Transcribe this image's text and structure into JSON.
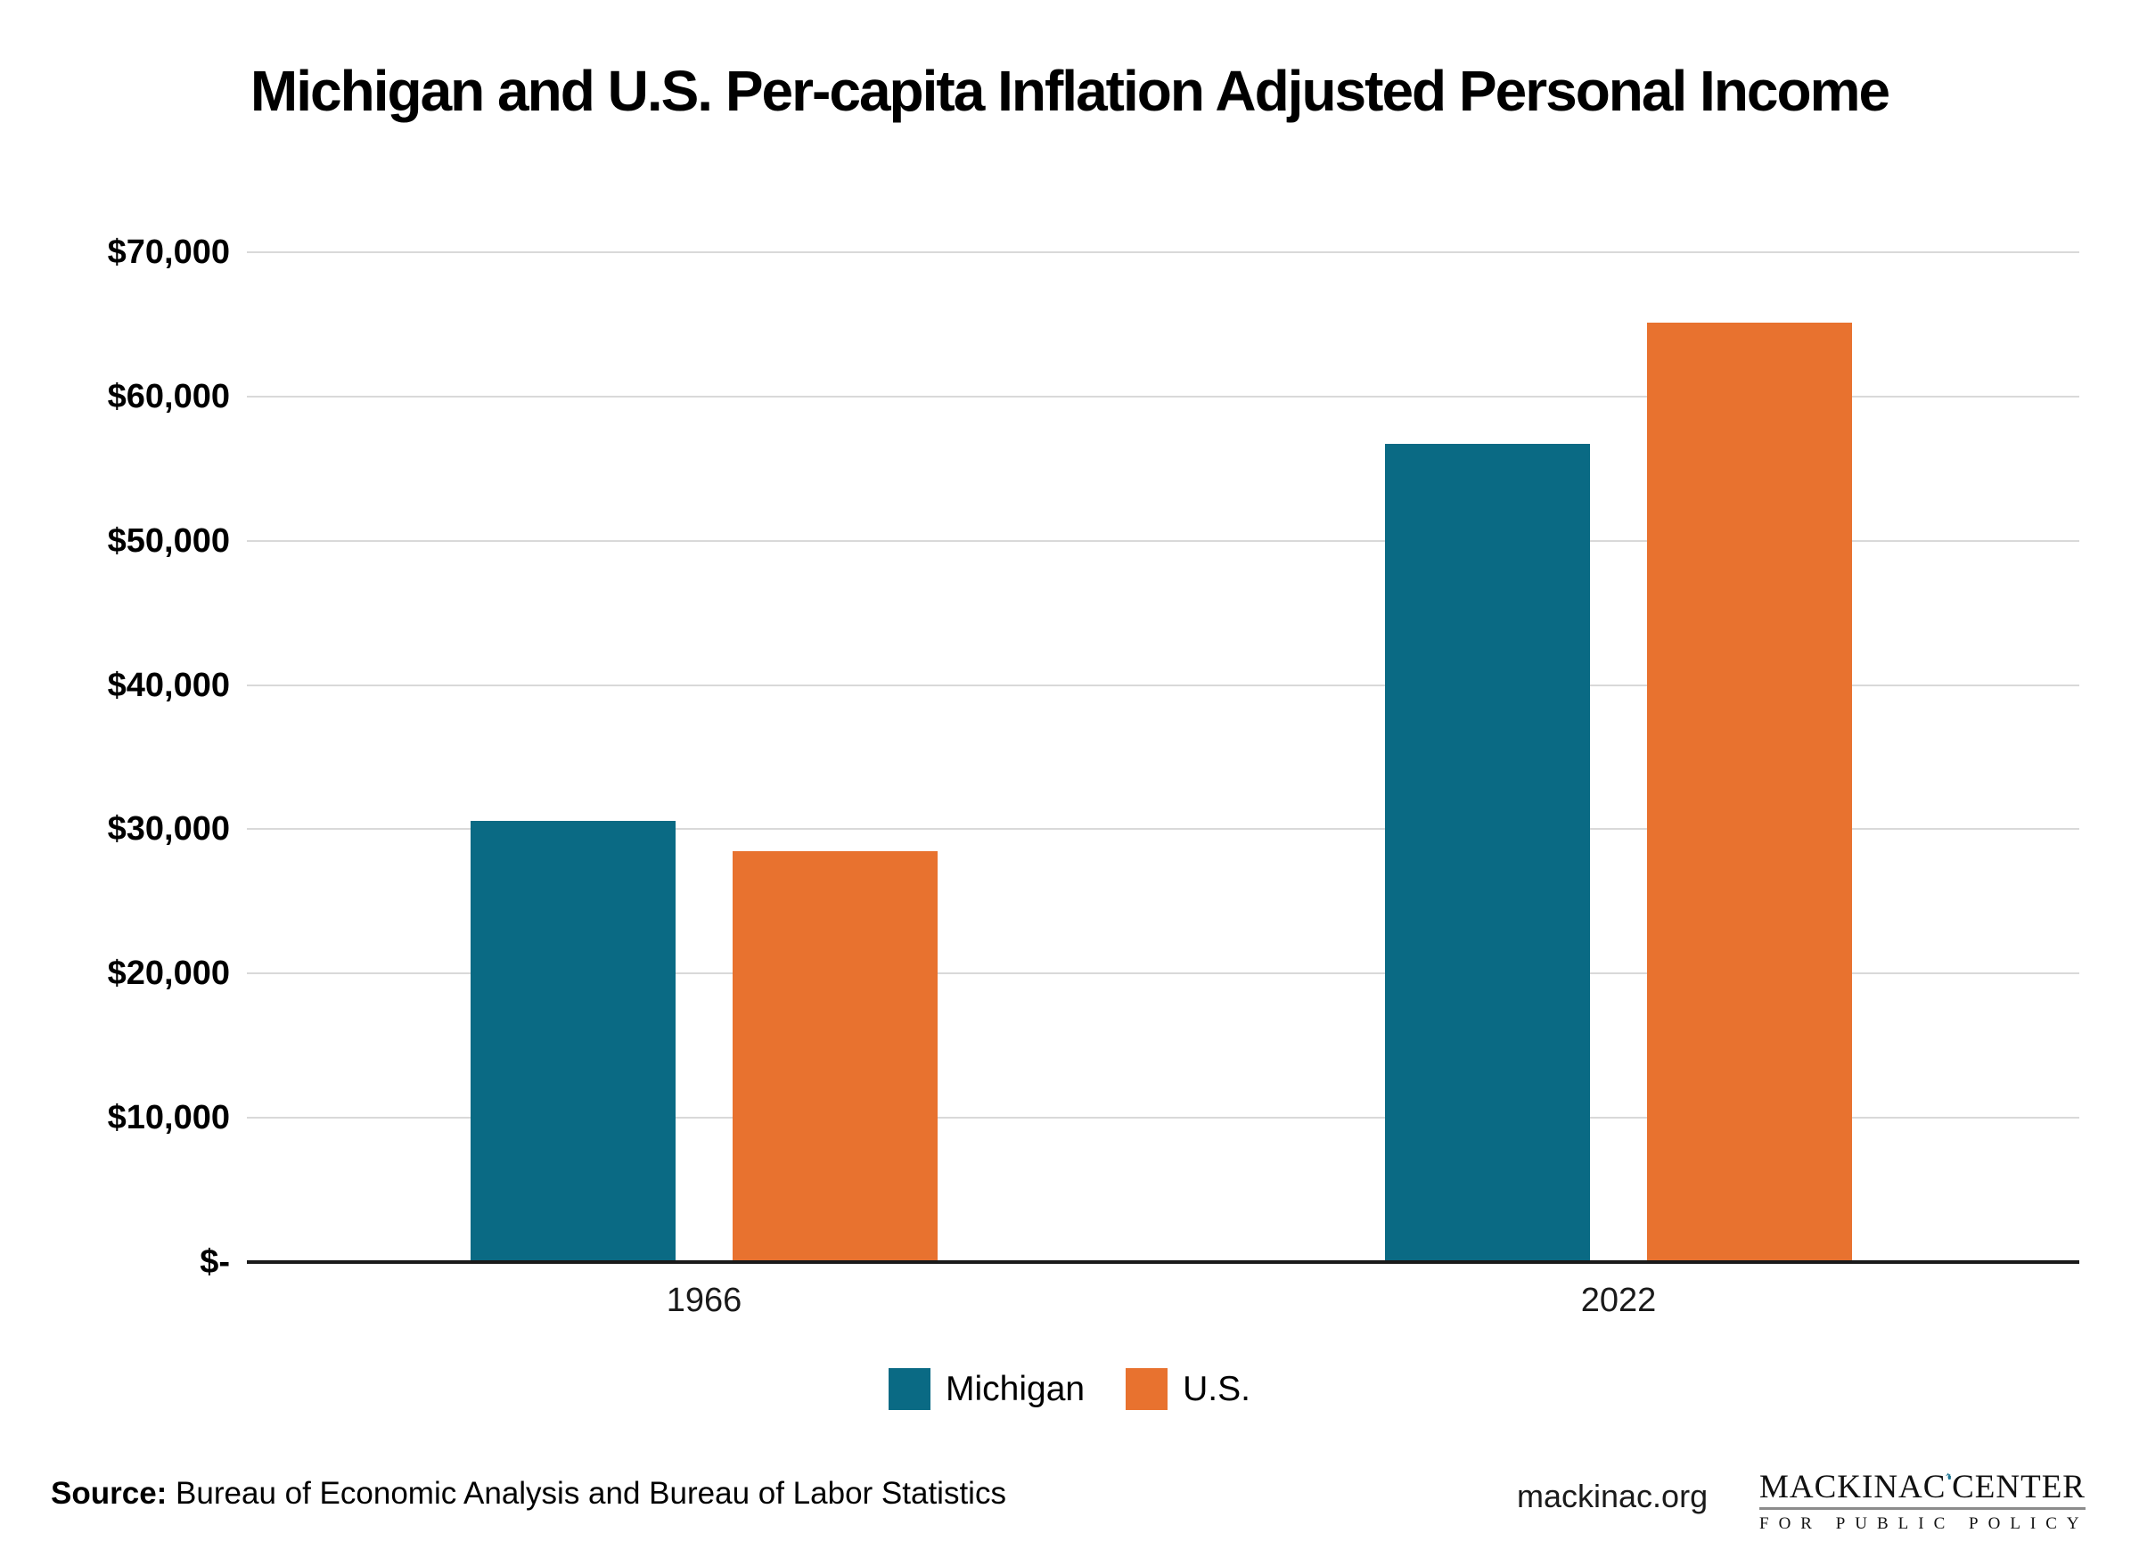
{
  "chart_data": {
    "type": "bar",
    "title": "Michigan and U.S. Per-capita Inflation Adjusted Personal Income",
    "categories": [
      "1966",
      "2022"
    ],
    "series": [
      {
        "name": "Michigan",
        "color": "#0A6A84",
        "values": [
          30600,
          56700
        ]
      },
      {
        "name": "U.S.",
        "color": "#E8722F",
        "values": [
          28500,
          65100
        ]
      }
    ],
    "xlabel": "",
    "ylabel": "",
    "ylim": [
      0,
      70000
    ],
    "ytick_step": 10000,
    "ytick_labels": [
      "$-",
      "$10,000",
      "$20,000",
      "$30,000",
      "$40,000",
      "$50,000",
      "$60,000",
      "$70,000"
    ],
    "grid": true,
    "gridline_color": "#d9d9d9",
    "axis_line_color": "#1a1a1a",
    "legend_position": "bottom"
  },
  "legend": {
    "items": [
      {
        "label": "Michigan",
        "color": "#0A6A84"
      },
      {
        "label": "U.S.",
        "color": "#E8722F"
      }
    ]
  },
  "footer": {
    "source_label": "Source:",
    "source_text": "Bureau of Economic Analysis and Bureau of Labor Statistics",
    "website": "mackinac.org",
    "logo": {
      "line1_left": "MACKINAC",
      "line1_right": "CENTER",
      "line2": "FOR PUBLIC POLICY",
      "michigan_icon": "michigan-state-shape",
      "accent_color": "#1F7693"
    }
  }
}
